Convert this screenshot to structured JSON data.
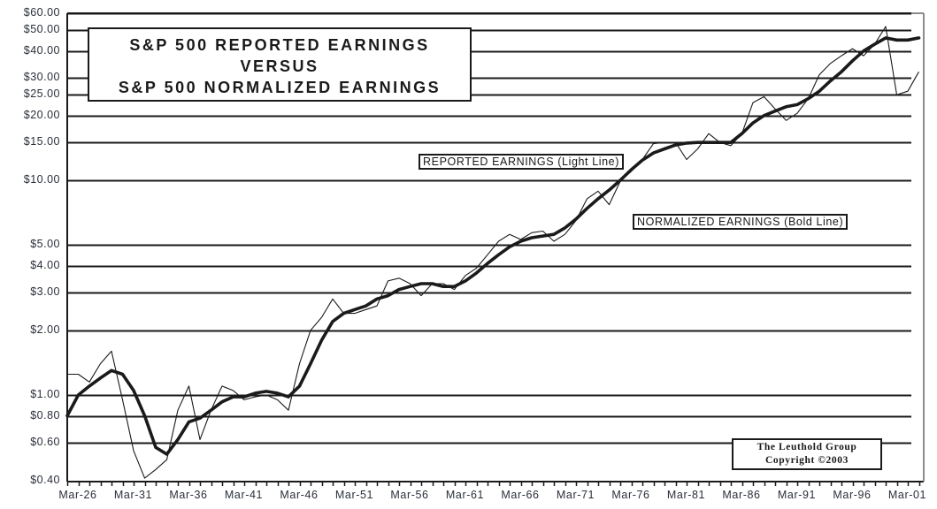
{
  "chart": {
    "title_lines": [
      "S&P 500 REPORTED EARNINGS",
      "VERSUS",
      "S&P 500 NORMALIZED EARNINGS"
    ],
    "annotations": {
      "reported": "REPORTED EARNINGS (Light Line)",
      "normalized": "NORMALIZED EARNINGS (Bold Line)"
    },
    "credit": [
      "The Leuthold Group",
      "Copyright ©2003"
    ],
    "y_ticks": [
      {
        "label": "$60.00",
        "value": 60
      },
      {
        "label": "$50.00",
        "value": 50
      },
      {
        "label": "$40.00",
        "value": 40
      },
      {
        "label": "$30.00",
        "value": 30
      },
      {
        "label": "$25.00",
        "value": 25
      },
      {
        "label": "$20.00",
        "value": 20
      },
      {
        "label": "$15.00",
        "value": 15
      },
      {
        "label": "$10.00",
        "value": 10
      },
      {
        "label": "$5.00",
        "value": 5
      },
      {
        "label": "$4.00",
        "value": 4
      },
      {
        "label": "$3.00",
        "value": 3
      },
      {
        "label": "$2.00",
        "value": 2
      },
      {
        "label": "$1.00",
        "value": 1
      },
      {
        "label": "$0.80",
        "value": 0.8
      },
      {
        "label": "$0.60",
        "value": 0.6
      },
      {
        "label": "$0.40",
        "value": 0.4
      }
    ],
    "x_ticks": [
      {
        "label": "Mar-26",
        "year": 1926
      },
      {
        "label": "Mar-31",
        "year": 1931
      },
      {
        "label": "Mar-36",
        "year": 1936
      },
      {
        "label": "Mar-41",
        "year": 1941
      },
      {
        "label": "Mar-46",
        "year": 1946
      },
      {
        "label": "Mar-51",
        "year": 1951
      },
      {
        "label": "Mar-56",
        "year": 1956
      },
      {
        "label": "Mar-61",
        "year": 1961
      },
      {
        "label": "Mar-66",
        "year": 1966
      },
      {
        "label": "Mar-71",
        "year": 1971
      },
      {
        "label": "Mar-76",
        "year": 1976
      },
      {
        "label": "Mar-81",
        "year": 1981
      },
      {
        "label": "Mar-86",
        "year": 1986
      },
      {
        "label": "Mar-91",
        "year": 1991
      },
      {
        "label": "Mar-96",
        "year": 1996
      },
      {
        "label": "Mar-01",
        "year": 2001
      }
    ],
    "colors": {
      "line": "#1a1a1a",
      "grid": "#1a1a1a",
      "right_border": "#8c8c8c",
      "tick_text": "#2a2f3a"
    }
  },
  "chart_data": {
    "type": "line",
    "title": "S&P 500 Reported Earnings versus S&P 500 Normalized Earnings",
    "xlabel": "",
    "ylabel": "",
    "y_scale": "log",
    "ylim": [
      0.4,
      60
    ],
    "xlim": [
      1926,
      2003
    ],
    "grid": true,
    "x": [
      1926,
      1927,
      1928,
      1929,
      1930,
      1931,
      1932,
      1933,
      1934,
      1935,
      1936,
      1937,
      1938,
      1939,
      1940,
      1941,
      1942,
      1943,
      1944,
      1945,
      1946,
      1947,
      1948,
      1949,
      1950,
      1951,
      1952,
      1953,
      1954,
      1955,
      1956,
      1957,
      1958,
      1959,
      1960,
      1961,
      1962,
      1963,
      1964,
      1965,
      1966,
      1967,
      1968,
      1969,
      1970,
      1971,
      1972,
      1973,
      1974,
      1975,
      1976,
      1977,
      1978,
      1979,
      1980,
      1981,
      1982,
      1983,
      1984,
      1985,
      1986,
      1987,
      1988,
      1989,
      1990,
      1991,
      1992,
      1993,
      1994,
      1995,
      1996,
      1997,
      1998,
      1999,
      2000,
      2001,
      2002,
      2003
    ],
    "series": [
      {
        "name": "Reported Earnings (Light Line)",
        "style": "light",
        "values": [
          1.25,
          1.25,
          1.15,
          1.4,
          1.6,
          0.95,
          0.55,
          0.41,
          0.45,
          0.5,
          0.85,
          1.1,
          0.62,
          0.85,
          1.1,
          1.05,
          0.95,
          0.98,
          1.0,
          0.95,
          0.85,
          1.4,
          2.0,
          2.3,
          2.8,
          2.4,
          2.4,
          2.5,
          2.6,
          3.4,
          3.5,
          3.3,
          2.9,
          3.3,
          3.3,
          3.1,
          3.6,
          3.9,
          4.5,
          5.2,
          5.6,
          5.3,
          5.7,
          5.8,
          5.2,
          5.6,
          6.5,
          8.2,
          8.9,
          7.7,
          9.9,
          11,
          12.5,
          14.8,
          15,
          15,
          12.5,
          14,
          16.5,
          15,
          14.5,
          16.5,
          23,
          24.5,
          21.5,
          19,
          20.5,
          24,
          31,
          35,
          38,
          41,
          38,
          43,
          52,
          25,
          26,
          32
        ]
      },
      {
        "name": "Normalized Earnings (Bold Line)",
        "style": "bold",
        "values": [
          0.8,
          1.0,
          1.1,
          1.2,
          1.3,
          1.25,
          1.05,
          0.8,
          0.57,
          0.53,
          0.62,
          0.75,
          0.78,
          0.85,
          0.93,
          0.98,
          0.98,
          1.02,
          1.04,
          1.02,
          0.98,
          1.1,
          1.4,
          1.8,
          2.2,
          2.4,
          2.5,
          2.6,
          2.8,
          2.9,
          3.1,
          3.2,
          3.3,
          3.3,
          3.2,
          3.2,
          3.4,
          3.7,
          4.1,
          4.5,
          4.9,
          5.2,
          5.4,
          5.5,
          5.6,
          6.0,
          6.6,
          7.4,
          8.2,
          9.0,
          10,
          11.2,
          12.4,
          13.4,
          14,
          14.6,
          14.9,
          15,
          15,
          15,
          15,
          16.5,
          18.5,
          20,
          21,
          22,
          22.5,
          24,
          26,
          29,
          32,
          36,
          40,
          43,
          46,
          45,
          45,
          46
        ]
      }
    ]
  }
}
